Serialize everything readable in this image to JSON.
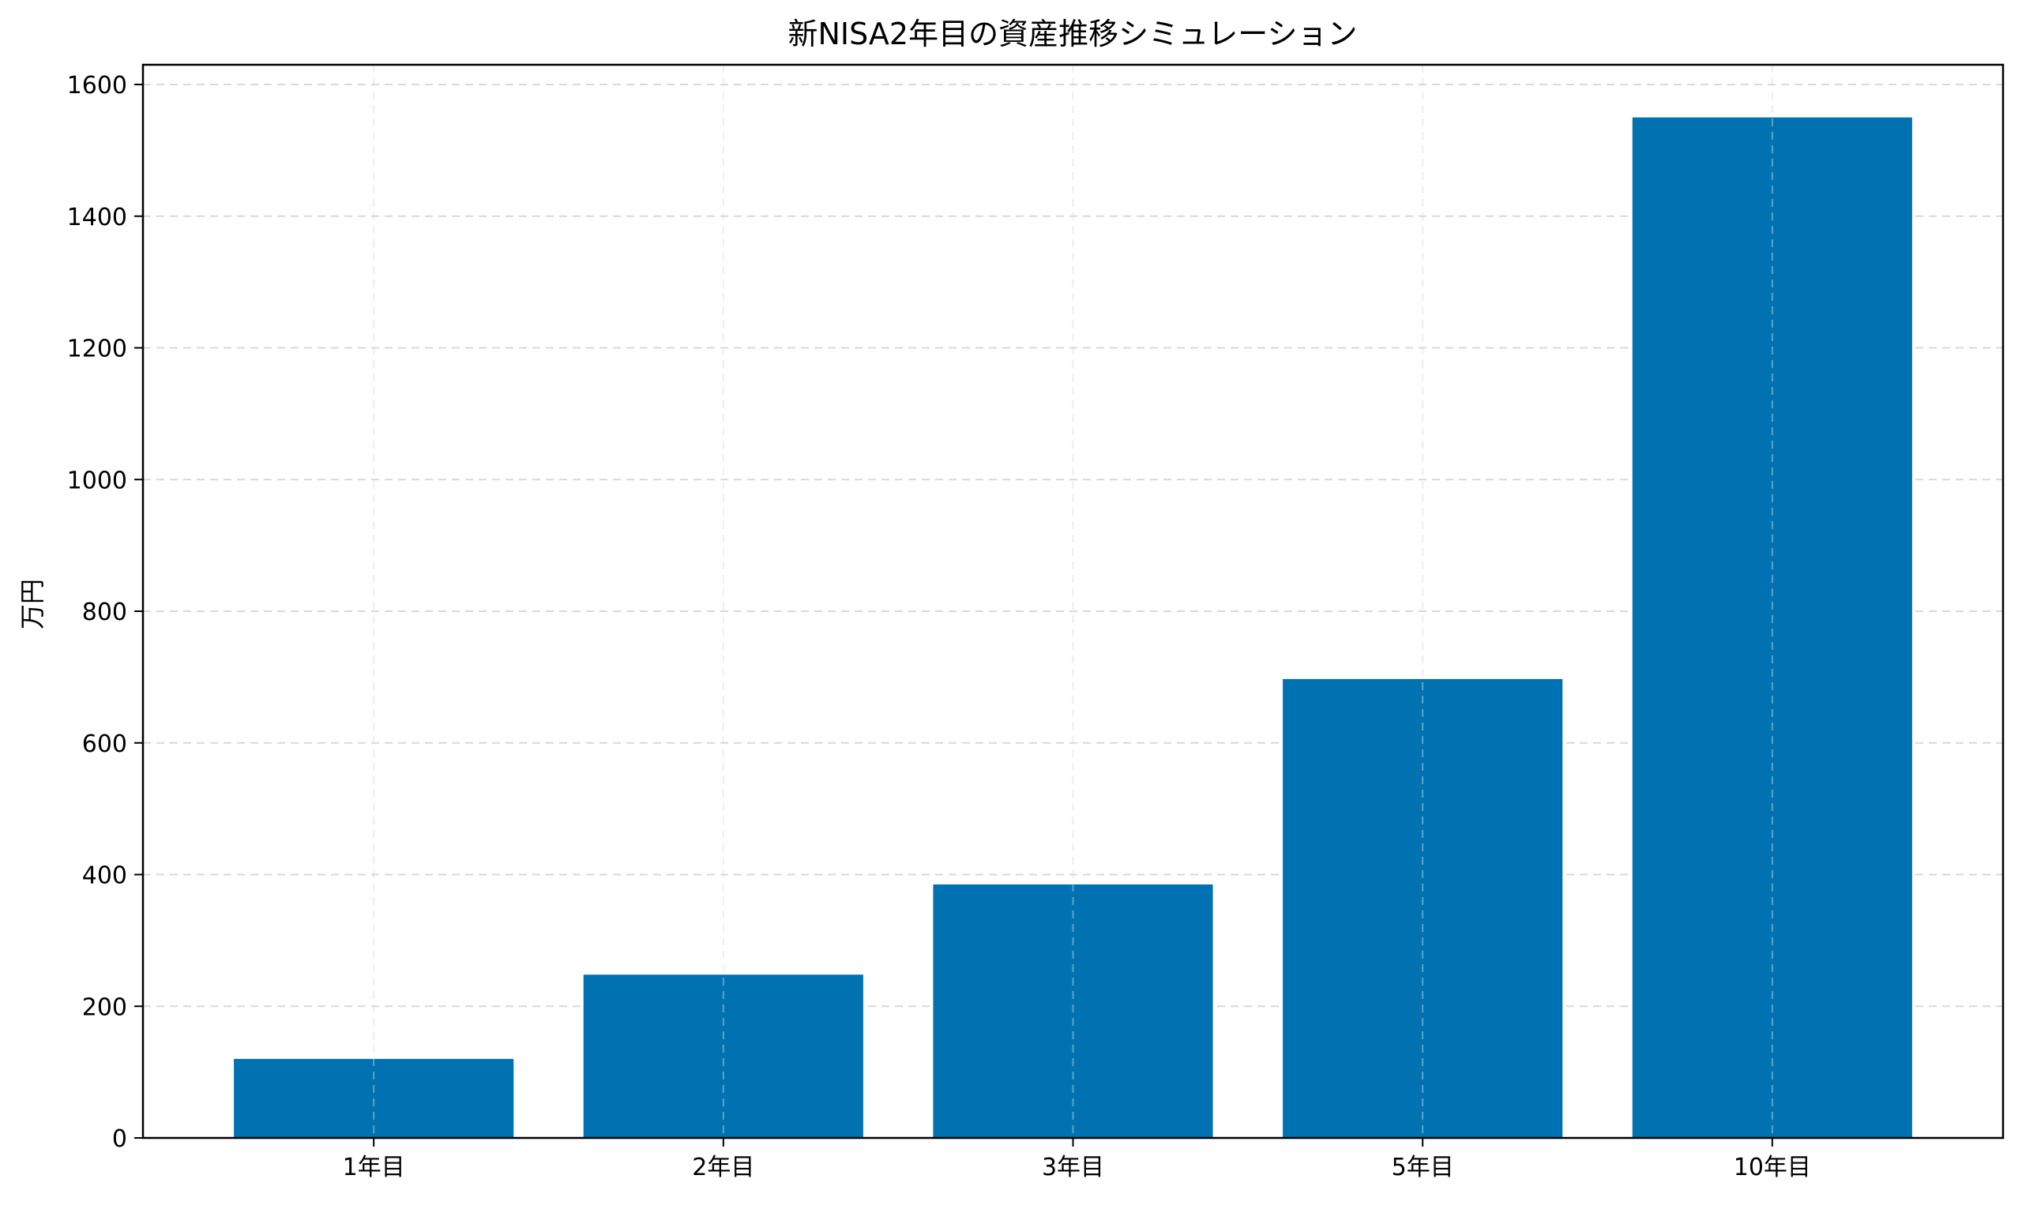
{
  "chart_data": {
    "type": "bar",
    "title": "新NISA2年目の資産推移シミュレーション",
    "xlabel": "",
    "ylabel": "万円",
    "categories": [
      "1年目",
      "2年目",
      "3年目",
      "5年目",
      "10年目"
    ],
    "values": [
      120,
      248,
      385,
      697,
      1550
    ],
    "ylim": [
      0,
      1630
    ],
    "yticks": [
      0,
      200,
      400,
      600,
      800,
      1000,
      1200,
      1400,
      1600
    ],
    "grid": true,
    "grid_style": "dashed",
    "legend": "none",
    "colors": {
      "bar": "#0072B2",
      "grid": "#d9d9d9",
      "axis": "#000000",
      "background": "#ffffff"
    }
  }
}
